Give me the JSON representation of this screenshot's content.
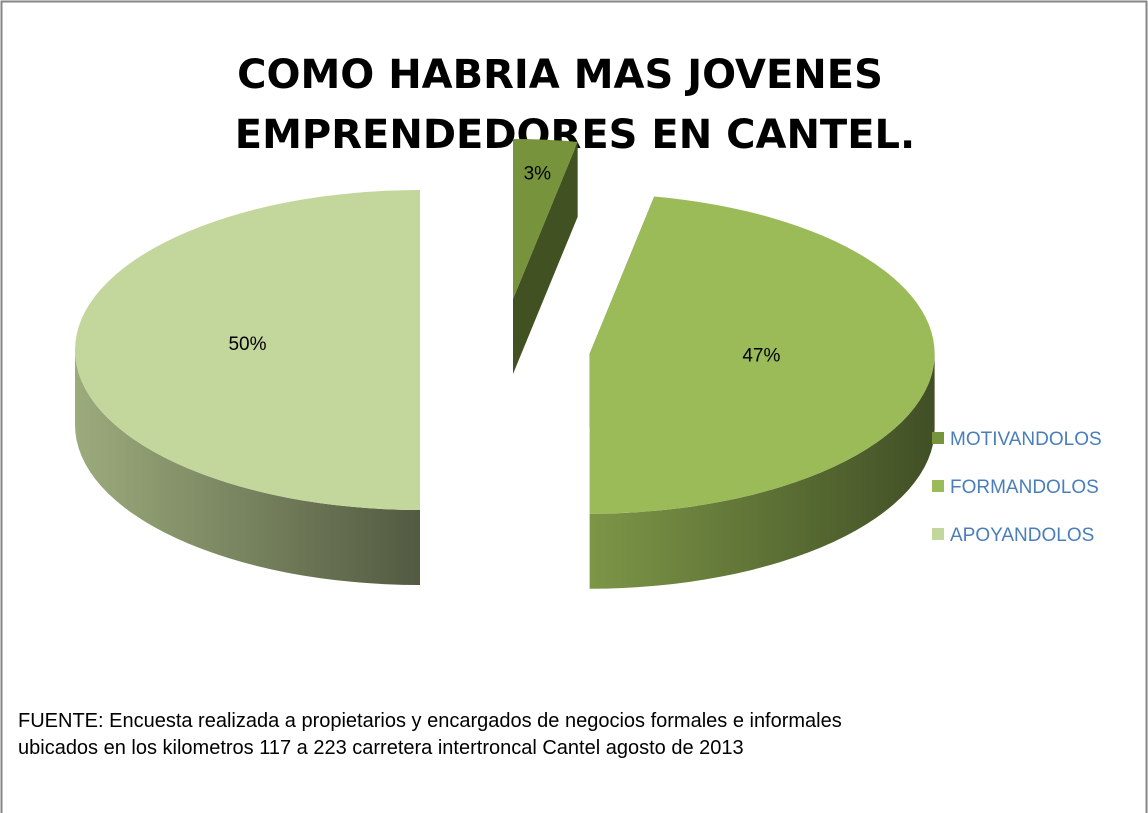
{
  "chart_data": {
    "type": "pie3d",
    "title": [
      "COMO HABRIA MAS JOVENES",
      "EMPRENDEDORES EN CANTEL."
    ],
    "categories": [
      "MOTIVANDOLOS",
      "FORMANDOLOS",
      "APOYANDOLOS"
    ],
    "values": [
      3,
      47,
      50
    ],
    "value_labels": [
      "3%",
      "47%",
      "50%"
    ],
    "colors": [
      "#77933c",
      "#9bbb59",
      "#c3d69b"
    ],
    "legend": "right",
    "source": [
      "FUENTE: Encuesta realizada a propietarios y encargados de negocios formales e informales",
      "ubicados en los kilometros 117 a 223 carretera intertroncal Cantel  agosto de 2013"
    ]
  }
}
